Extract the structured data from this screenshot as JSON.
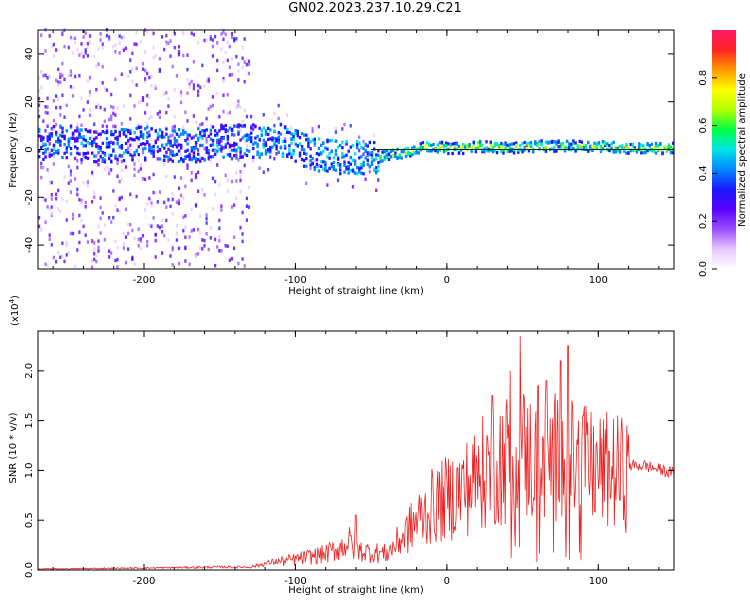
{
  "figure": {
    "title": "GN02.2023.237.10.29.C21"
  },
  "colors": {
    "snr_line": "#ee2222",
    "zero_line": "#003300",
    "colorbar_stops": [
      "#ffffff",
      "#e6c8ff",
      "#9b4dff",
      "#5a00ff",
      "#1a1aff",
      "#0088ff",
      "#00e6e6",
      "#00ff40",
      "#b4ff00",
      "#ffff00",
      "#ff9900",
      "#ff2222",
      "#ff1a66"
    ]
  },
  "chart_data": [
    {
      "type": "heatmap",
      "name": "spectrogram",
      "xlabel": "Height of straight line (km)",
      "ylabel": "Frequency (Hz)",
      "xlim": [
        -270,
        150
      ],
      "ylim": [
        -50,
        50
      ],
      "x_ticks": [
        -200,
        -100,
        0,
        100
      ],
      "y_ticks": [
        -40,
        -20,
        0,
        20,
        40
      ],
      "colorbar": {
        "label": "Normalized spectral amplitude",
        "range": [
          0.0,
          1.0
        ],
        "ticks": [
          0.0,
          0.2,
          0.4,
          0.6,
          0.8
        ]
      },
      "ridge": {
        "description": "dominant frequency of narrow band versus height",
        "x": [
          -270,
          -250,
          -230,
          -200,
          -170,
          -150,
          -130,
          -110,
          -100,
          -90,
          -80,
          -70,
          -60,
          -50,
          -40,
          -30,
          -20,
          -10,
          0,
          10,
          20,
          40,
          60,
          80,
          100,
          120,
          150
        ],
        "frequency": [
          2,
          3,
          1,
          2,
          1,
          3,
          3,
          4,
          1,
          -2,
          -3,
          -4,
          -4,
          -4,
          -3,
          -2,
          0,
          1,
          0,
          0,
          1,
          0,
          1,
          1,
          1,
          0,
          0
        ]
      }
    },
    {
      "type": "line",
      "name": "snr",
      "xlabel": "Height of straight line (km)",
      "ylabel": "SNR (10 * v/v)",
      "yscale_label": "(x10",
      "yscale_exponent": "4",
      "xlim": [
        -270,
        150
      ],
      "ylim": [
        0,
        2.4
      ],
      "x_ticks": [
        -200,
        -100,
        0,
        100
      ],
      "y_ticks": [
        0.0,
        0.5,
        1.0,
        1.5,
        2.0
      ],
      "envelope": {
        "x": [
          -270,
          -200,
          -150,
          -130,
          -115,
          -100,
          -80,
          -70,
          -65,
          -60,
          -50,
          -40,
          -30,
          -20,
          -10,
          0,
          10,
          20,
          30,
          40,
          50,
          60,
          70,
          80,
          90,
          100,
          110,
          120,
          130,
          150
        ],
        "y": [
          0.01,
          0.02,
          0.03,
          0.03,
          0.08,
          0.12,
          0.18,
          0.25,
          0.32,
          0.22,
          0.2,
          0.18,
          0.35,
          0.55,
          0.7,
          0.8,
          0.9,
          1.0,
          1.2,
          1.25,
          1.3,
          1.2,
          1.25,
          1.2,
          1.15,
          1.1,
          1.1,
          1.05,
          1.05,
          0.97
        ]
      },
      "peaks": {
        "x": [
          -60,
          30,
          42,
          48,
          60,
          66,
          75,
          80,
          90
        ],
        "y": [
          0.55,
          1.75,
          2.0,
          2.35,
          1.85,
          1.9,
          2.1,
          2.25,
          1.55
        ]
      },
      "legend": "none"
    }
  ]
}
